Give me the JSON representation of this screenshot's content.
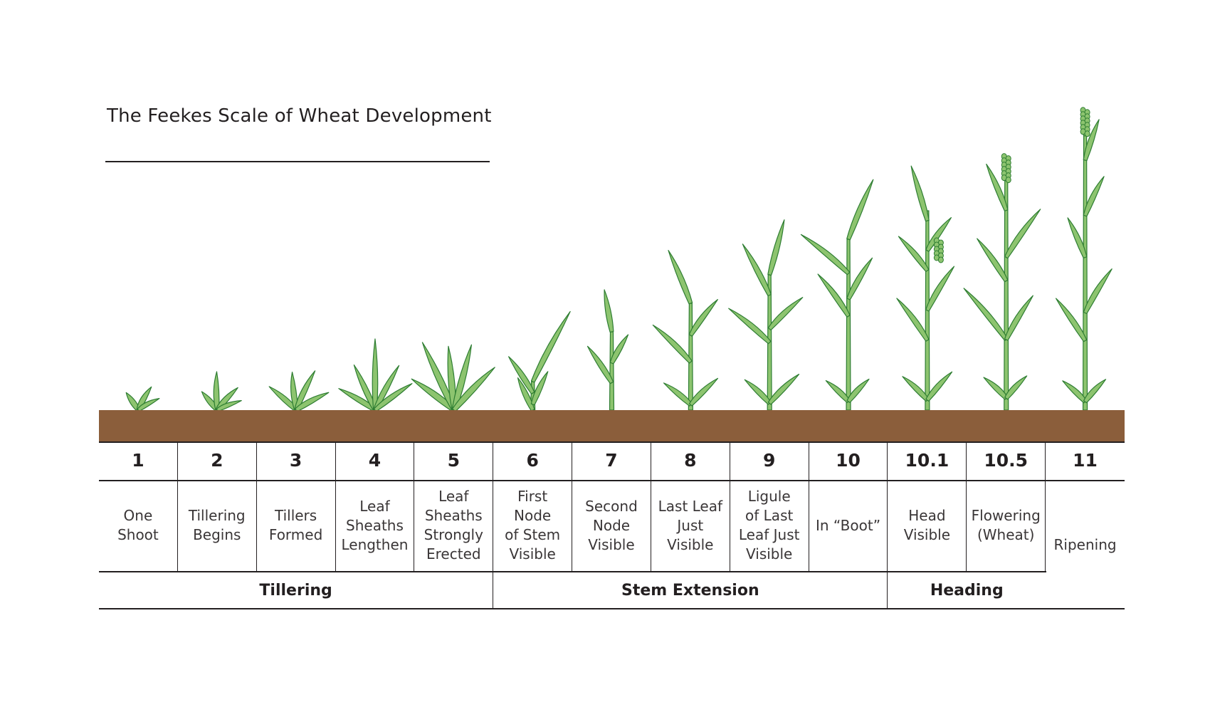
{
  "title": "The Feekes Scale of Wheat Development",
  "colors": {
    "leaf": "#8dc46f",
    "leaf_outline": "#2e7d32",
    "soil": "#8b5e3b",
    "root": "#e9d8b0",
    "line": "#231f20"
  },
  "stages": [
    {
      "number": "1",
      "description": "One\nShoot"
    },
    {
      "number": "2",
      "description": "Tillering\nBegins"
    },
    {
      "number": "3",
      "description": "Tillers\nFormed"
    },
    {
      "number": "4",
      "description": "Leaf\nSheaths\nLengthen"
    },
    {
      "number": "5",
      "description": "Leaf\nSheaths\nStrongly\nErected"
    },
    {
      "number": "6",
      "description": "First\nNode\nof Stem\nVisible"
    },
    {
      "number": "7",
      "description": "Second\nNode\nVisible"
    },
    {
      "number": "8",
      "description": "Last Leaf\nJust\nVisible"
    },
    {
      "number": "9",
      "description": "Ligule\nof Last\nLeaf Just\nVisible"
    },
    {
      "number": "10",
      "description": "In “Boot”"
    },
    {
      "number": "10.1",
      "description": "Head\nVisible"
    },
    {
      "number": "10.5",
      "description": "Flowering\n(Wheat)"
    },
    {
      "number": "11",
      "description": "Ripening"
    }
  ],
  "phases": [
    {
      "label": "Tillering",
      "stage_count": 5
    },
    {
      "label": "Stem Extension",
      "stage_count": 5
    },
    {
      "label": "Heading",
      "stage_count": 2
    }
  ]
}
